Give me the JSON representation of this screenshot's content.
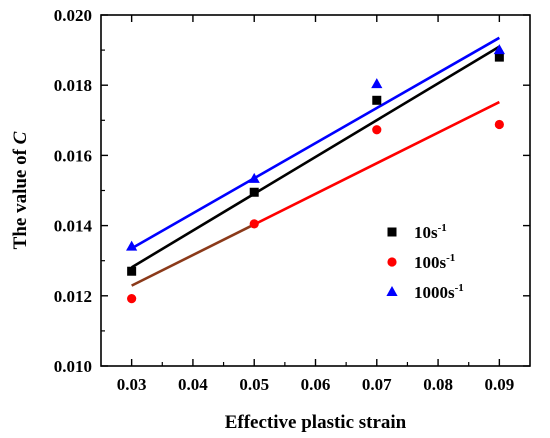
{
  "chart_data": {
    "type": "scatter",
    "xlabel": "Effective plastic strain",
    "ylabel_main": "The value of ",
    "ylabel_var": "C",
    "xlim": [
      0.025,
      0.095
    ],
    "ylim": [
      0.01,
      0.02
    ],
    "xticks": [
      0.03,
      0.04,
      0.05,
      0.06,
      0.07,
      0.08,
      0.09
    ],
    "xtick_labels": [
      "0.03",
      "0.04",
      "0.05",
      "0.06",
      "0.07",
      "0.08",
      "0.09"
    ],
    "yticks": [
      0.01,
      0.012,
      0.014,
      0.016,
      0.018,
      0.02
    ],
    "ytick_labels": [
      "0.010",
      "0.012",
      "0.014",
      "0.016",
      "0.018",
      "0.020"
    ],
    "legend_position": "center-right",
    "series": [
      {
        "name": "10s",
        "name_sup": "-1",
        "marker": "square",
        "color": "#000000",
        "line_color": "#000000",
        "x": [
          0.03,
          0.05,
          0.07,
          0.09
        ],
        "y": [
          0.0127,
          0.01495,
          0.01757,
          0.0188
        ],
        "fit": [
          [
            0.03,
            0.01281
          ],
          [
            0.09,
            0.0191
          ]
        ]
      },
      {
        "name": "100s",
        "name_sup": "-1",
        "marker": "circle",
        "color": "#ff0000",
        "line_color": "#ff0000",
        "x": [
          0.03,
          0.05,
          0.07,
          0.09
        ],
        "y": [
          0.01192,
          0.01405,
          0.01673,
          0.01688
        ],
        "fit": [
          [
            0.03,
            0.01229
          ],
          [
            0.09,
            0.01752
          ]
        ],
        "segment_colors": [
          "#8b3a1a",
          "#ff0000"
        ]
      },
      {
        "name": "1000s",
        "name_sup": "-1",
        "marker": "triangle",
        "color": "#0000ff",
        "line_color": "#0000ff",
        "x": [
          0.03,
          0.05,
          0.07,
          0.09
        ],
        "y": [
          0.0134,
          0.01533,
          0.01803,
          0.019
        ],
        "fit": [
          [
            0.03,
            0.01335
          ],
          [
            0.09,
            0.01935
          ]
        ]
      }
    ]
  }
}
